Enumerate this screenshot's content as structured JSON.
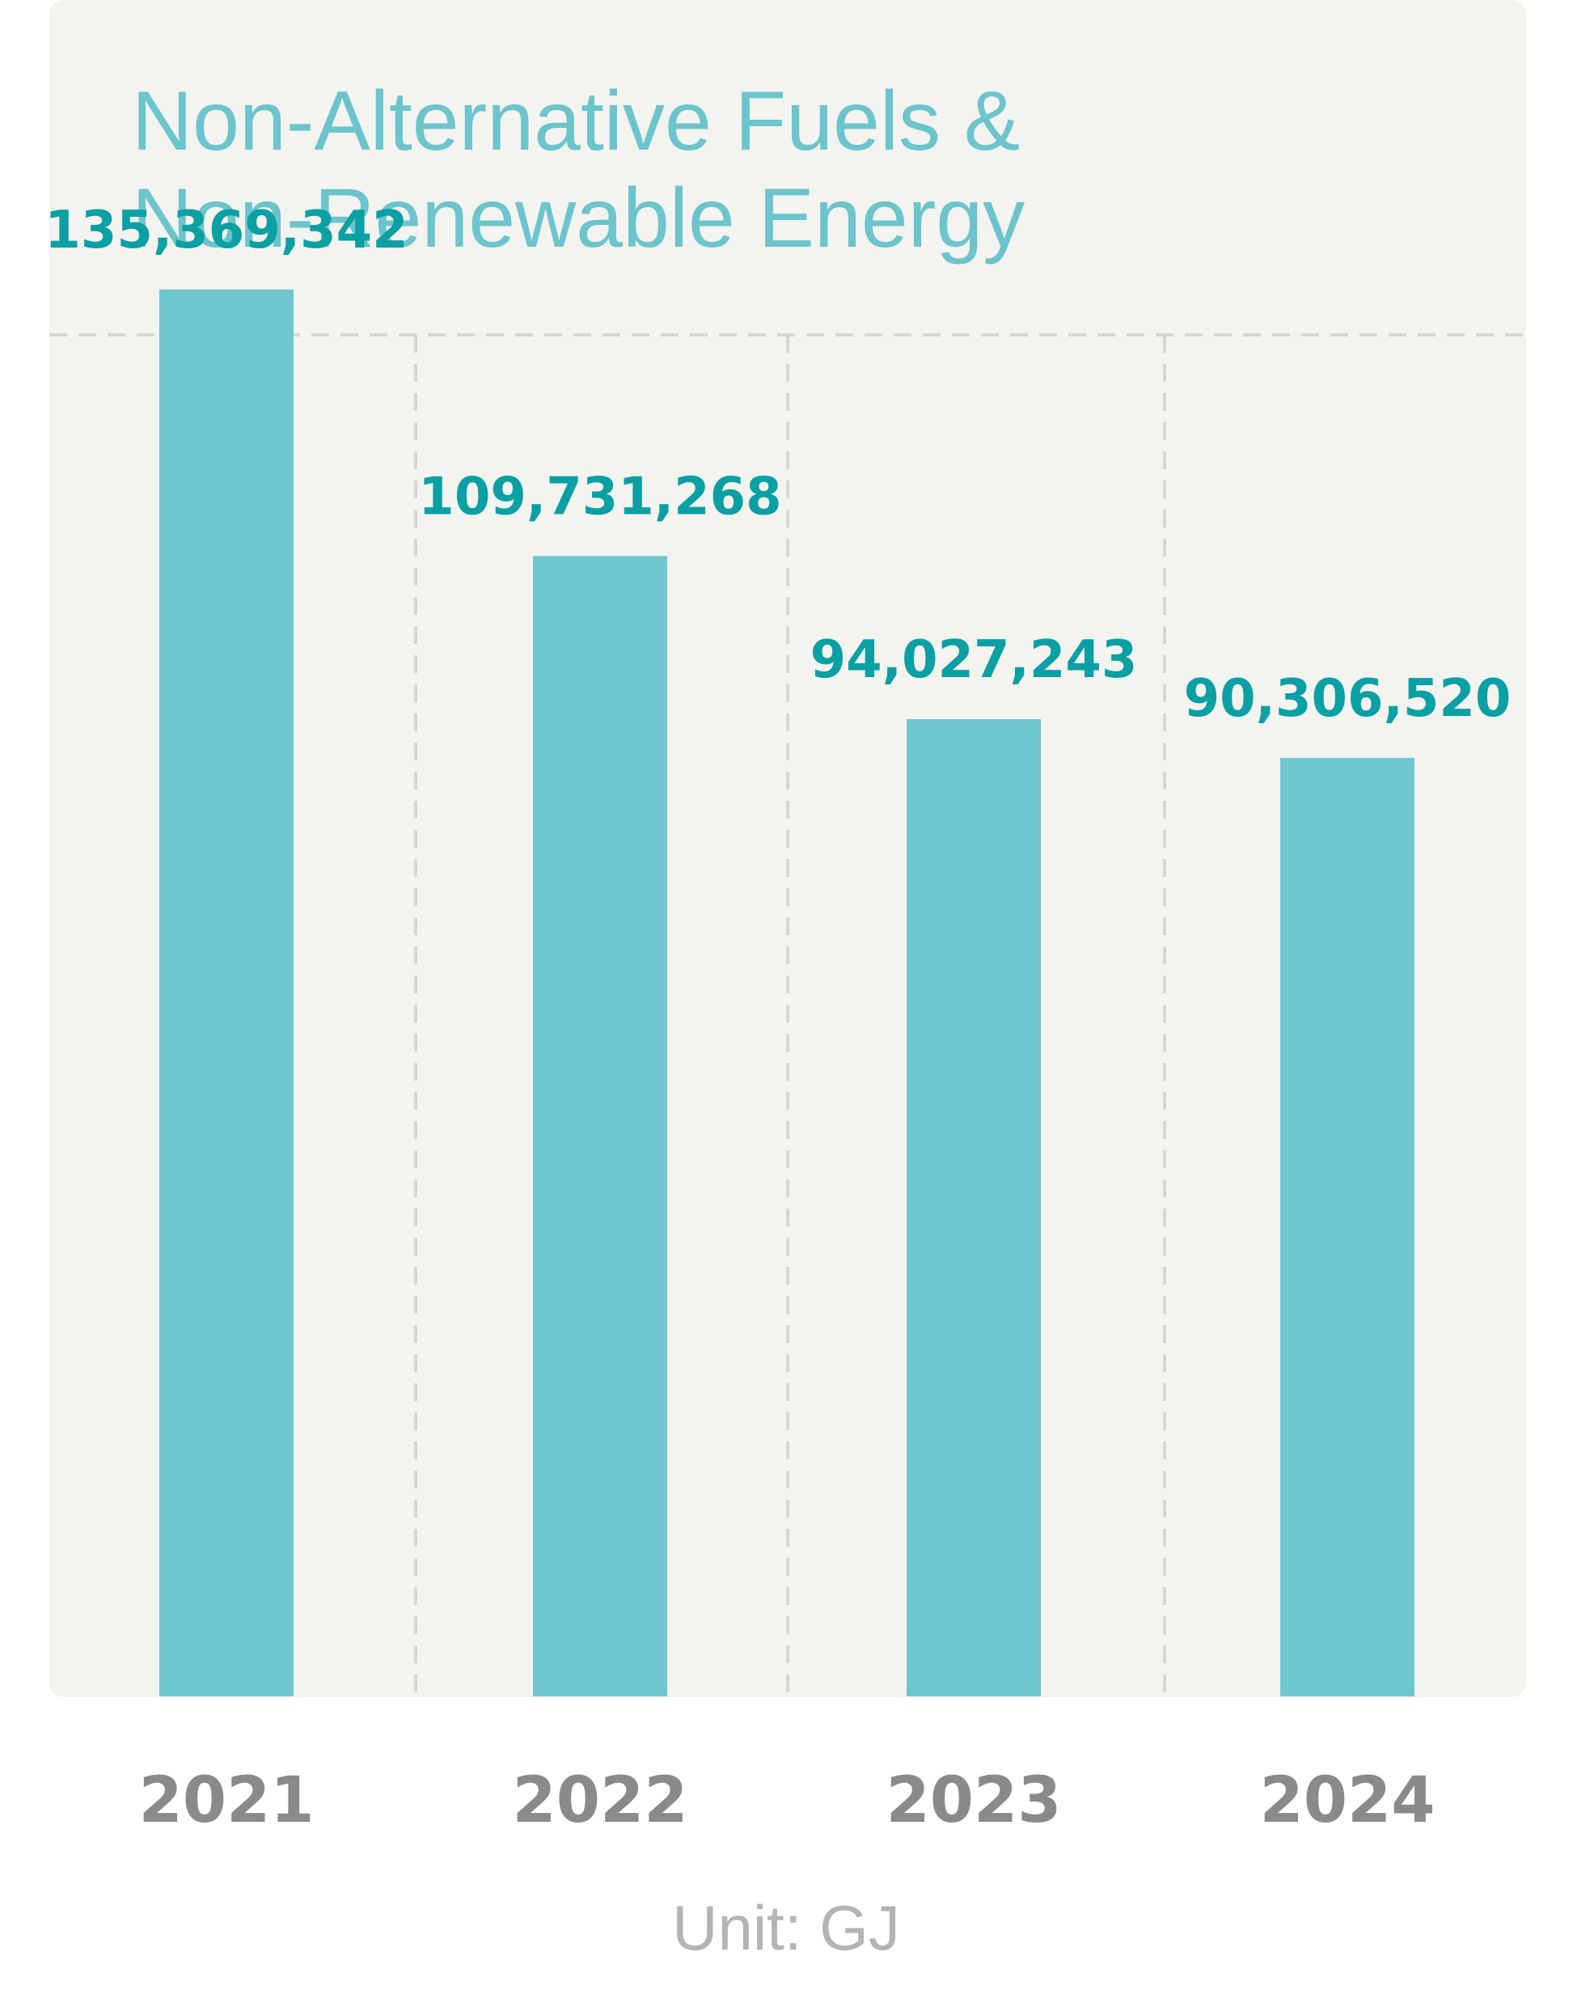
{
  "chart_data": {
    "type": "bar",
    "title_lines": [
      "Non-Alternative Fuels &",
      "Non-Renewable Energy"
    ],
    "categories": [
      "2021",
      "2022",
      "2023",
      "2024"
    ],
    "values": [
      135369342,
      109731268,
      94027243,
      90306520
    ],
    "value_labels": [
      "135,369,342",
      "109,731,268",
      "94,027,243",
      "90,306,520"
    ],
    "unit": "Unit: GJ",
    "ylim": [
      0,
      170000000
    ],
    "grid": "dashed vertical column separators",
    "colors": {
      "panel_bg": "#f3f3ef",
      "bar": "#6fc6cf",
      "title": "#6cc4cc",
      "value_label": "#0aa0a4",
      "category_label": "#8a8a8a",
      "unit_label": "#b4b4b4",
      "grid": "#d6d6d2"
    }
  }
}
